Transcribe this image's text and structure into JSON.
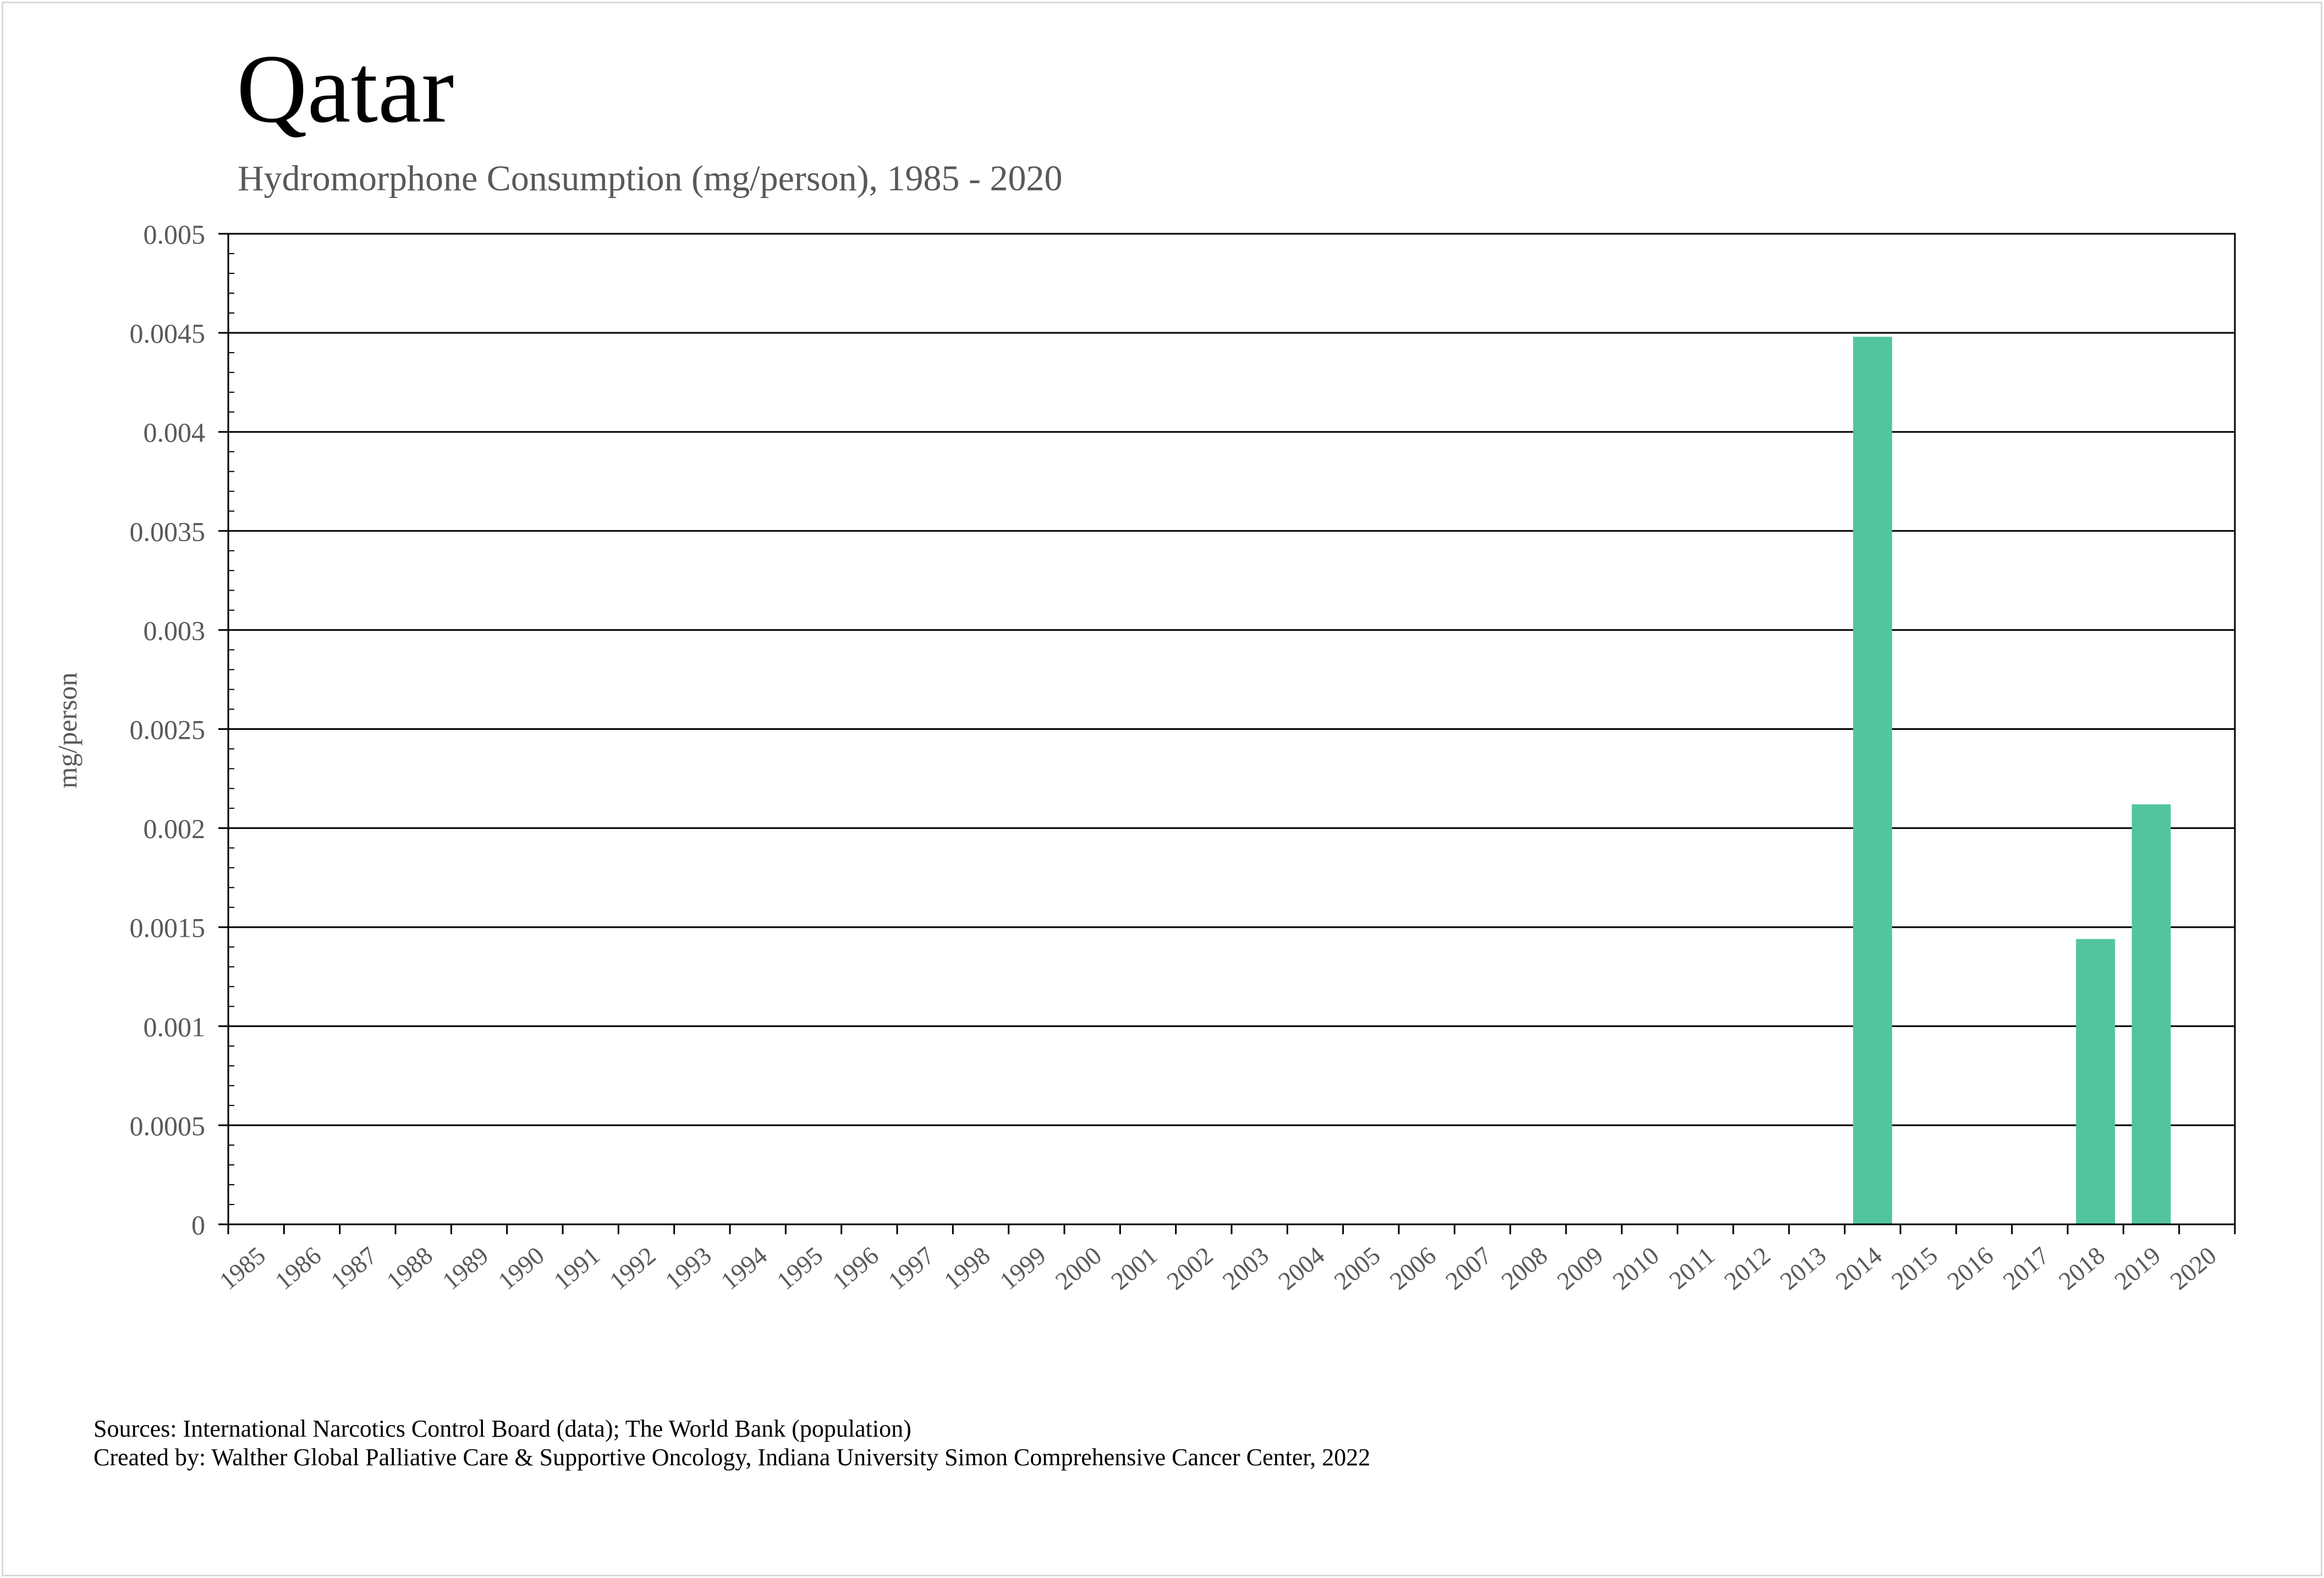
{
  "chart_data": {
    "type": "bar",
    "title": "Qatar",
    "subtitle": "Hydromorphone Consumption (mg/person), 1985 - 2020",
    "ylabel": "mg/person",
    "xlabel": "",
    "ylim": [
      0,
      0.005
    ],
    "ytick_labels": [
      "0",
      "0.0005",
      "0.001",
      "0.0015",
      "0.002",
      "0.0025",
      "0.003",
      "0.0035",
      "0.004",
      "0.0045",
      "0.005"
    ],
    "categories": [
      "1985",
      "1986",
      "1987",
      "1988",
      "1989",
      "1990",
      "1991",
      "1992",
      "1993",
      "1994",
      "1995",
      "1996",
      "1997",
      "1998",
      "1999",
      "2000",
      "2001",
      "2002",
      "2003",
      "2004",
      "2005",
      "2006",
      "2007",
      "2008",
      "2009",
      "2010",
      "2011",
      "2012",
      "2013",
      "2014",
      "2015",
      "2016",
      "2017",
      "2018",
      "2019",
      "2020"
    ],
    "values": [
      null,
      null,
      null,
      null,
      null,
      null,
      null,
      null,
      null,
      null,
      null,
      null,
      null,
      null,
      null,
      null,
      null,
      null,
      null,
      null,
      null,
      null,
      null,
      null,
      null,
      null,
      null,
      null,
      null,
      0.00448,
      null,
      null,
      null,
      0.00144,
      0.00212,
      null
    ],
    "bar_color": "#52c5a0",
    "grid": true,
    "legend": "none"
  },
  "footer": {
    "sources": "Sources: International Narcotics Control Board (data); The World Bank (population)",
    "credit": "Created by: Walther Global Palliative Care & Supportive Oncology, Indiana University Simon Comprehensive Cancer Center, 2022"
  }
}
